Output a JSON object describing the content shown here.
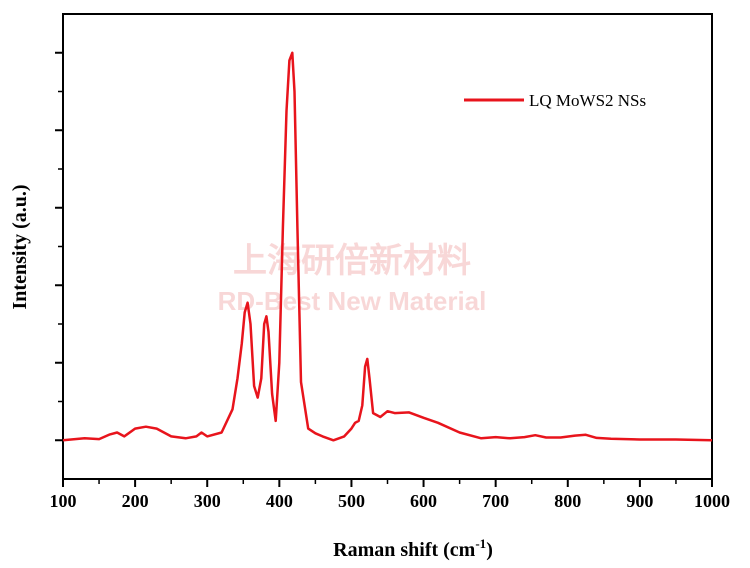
{
  "chart_data": {
    "type": "line",
    "xlabel": "Raman shift (cm",
    "xlabel_sup": "-1",
    "xlabel_close": ")",
    "ylabel": "Intensity (a.u.)",
    "xlim": [
      100,
      1000
    ],
    "ylim": [
      -0.1,
      1.1
    ],
    "x_ticks": [
      "100",
      "200",
      "300",
      "400",
      "500",
      "600",
      "700",
      "800",
      "900",
      "1000"
    ],
    "y_ticks_labeled": false,
    "legend_position": "top-right",
    "series": [
      {
        "name": "LQ MoWS2 NSs",
        "color": "#e8141c",
        "x": [
          100,
          130,
          150,
          165,
          175,
          185,
          200,
          215,
          230,
          250,
          270,
          285,
          292,
          300,
          320,
          335,
          342,
          348,
          352,
          356,
          360,
          365,
          370,
          375,
          379,
          382,
          385,
          390,
          395,
          400,
          405,
          410,
          414,
          418,
          421,
          425,
          430,
          440,
          450,
          460,
          475,
          490,
          500,
          505,
          510,
          515,
          519,
          522,
          525,
          530,
          540,
          550,
          560,
          580,
          600,
          620,
          650,
          680,
          700,
          720,
          740,
          755,
          770,
          790,
          810,
          825,
          840,
          860,
          900,
          950,
          1000
        ],
        "y": [
          0,
          0.005,
          0.003,
          0.015,
          0.02,
          0.01,
          0.03,
          0.035,
          0.03,
          0.01,
          0.005,
          0.01,
          0.02,
          0.01,
          0.02,
          0.08,
          0.16,
          0.25,
          0.33,
          0.355,
          0.3,
          0.14,
          0.11,
          0.16,
          0.3,
          0.32,
          0.28,
          0.12,
          0.05,
          0.2,
          0.55,
          0.85,
          0.98,
          1.0,
          0.9,
          0.55,
          0.15,
          0.03,
          0.018,
          0.01,
          0.0,
          0.01,
          0.03,
          0.045,
          0.05,
          0.09,
          0.19,
          0.21,
          0.16,
          0.07,
          0.06,
          0.075,
          0.07,
          0.072,
          0.058,
          0.045,
          0.02,
          0.005,
          0.008,
          0.005,
          0.008,
          0.013,
          0.007,
          0.007,
          0.012,
          0.014,
          0.006,
          0.004,
          0.002,
          0.002,
          0.0
        ]
      }
    ]
  },
  "watermark": {
    "cn": "上海研倍新材料",
    "en": "RD-Best New Material"
  }
}
